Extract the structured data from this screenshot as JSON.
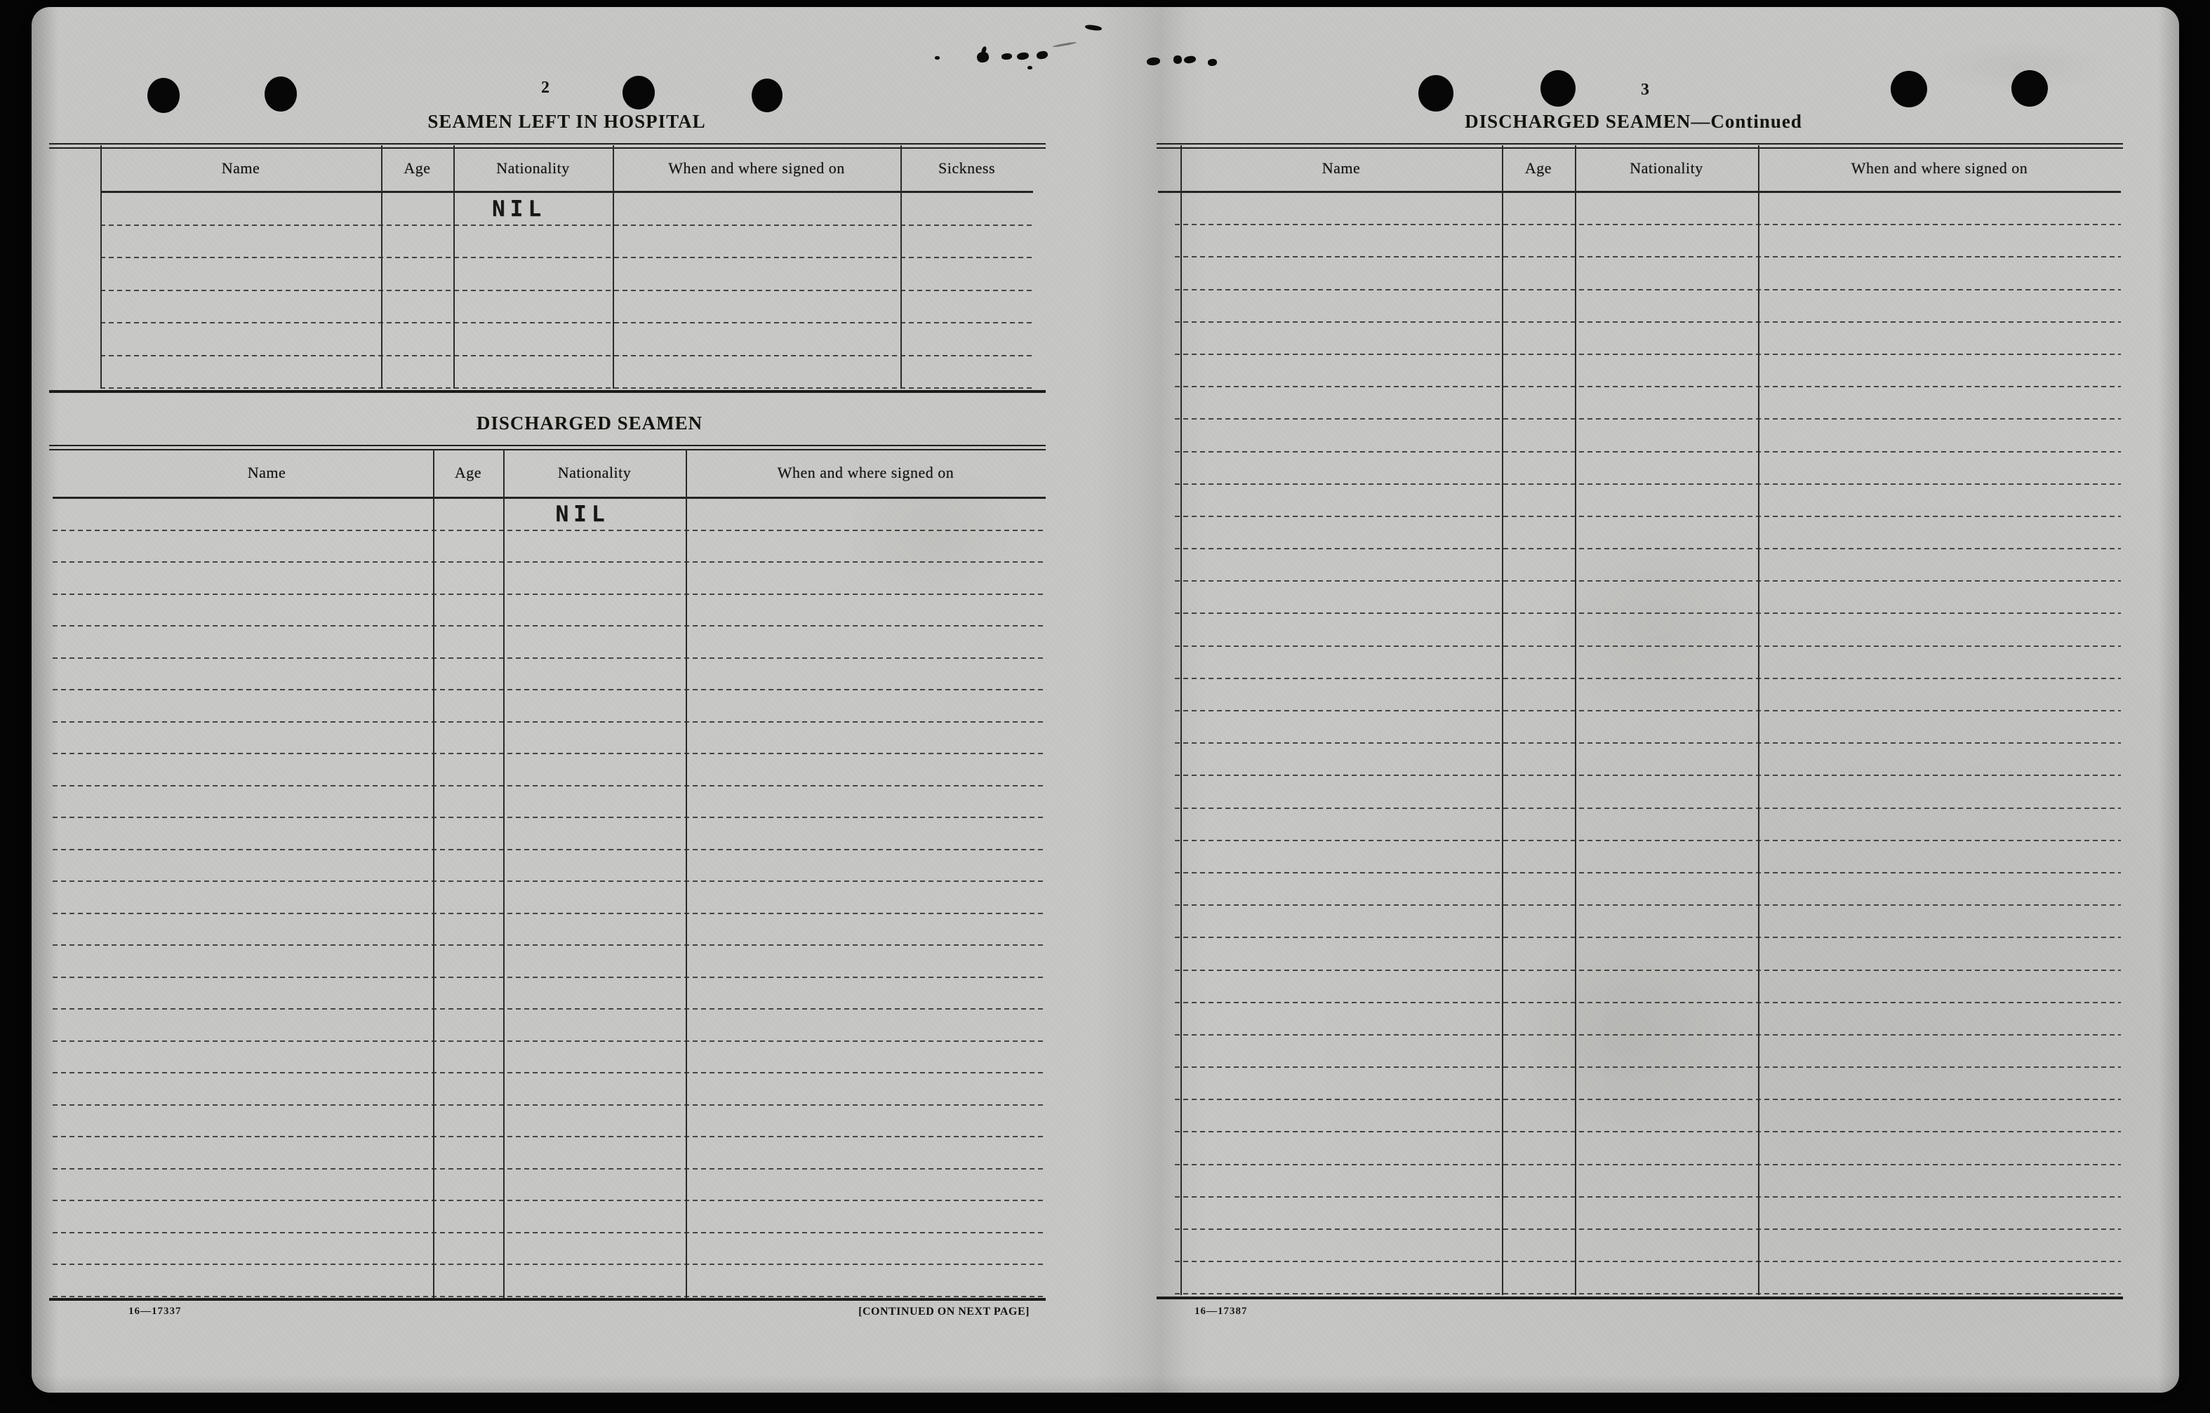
{
  "colors": {
    "paper": "#c6c6c4",
    "ink": "#1c1c1a",
    "background": "#060606"
  },
  "document": {
    "left_page": {
      "page_number": "2",
      "hospital_table": {
        "title": "SEAMEN LEFT IN HOSPITAL",
        "columns": [
          "Name",
          "Age",
          "Nationality",
          "When and where signed on",
          "Sickness"
        ],
        "rows": 6,
        "entries": [
          {
            "row": 1,
            "column": "Nationality",
            "value": "NIL"
          }
        ]
      },
      "discharged_table": {
        "title": "DISCHARGED SEAMEN",
        "columns": [
          "Name",
          "Age",
          "Nationality",
          "When and where signed on"
        ],
        "rows": 25,
        "entries": [
          {
            "row": 1,
            "column": "Nationality",
            "value": "NIL"
          }
        ]
      },
      "footer": {
        "form_number": "16—17337",
        "continuation_note": "[CONTINUED ON NEXT PAGE]"
      }
    },
    "right_page": {
      "page_number": "3",
      "table": {
        "title": "DISCHARGED SEAMEN—Continued",
        "columns": [
          "Name",
          "Age",
          "Nationality",
          "When and where signed on"
        ],
        "rows": 34,
        "entries": []
      },
      "footer": {
        "form_number": "16—17387"
      }
    }
  }
}
